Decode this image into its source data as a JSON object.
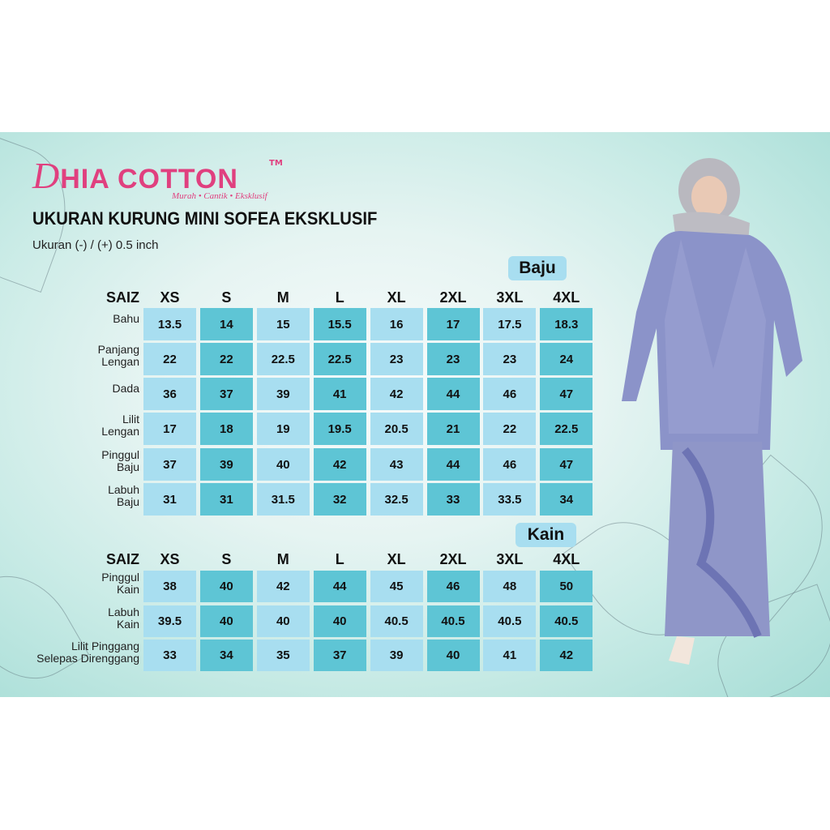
{
  "brand": {
    "name": "DHIA COTTON",
    "trademark": "TM",
    "tagline": "Murah • Cantik • Eksklusif"
  },
  "title": "UKURAN KURUNG MINI SOFEA EKSKLUSIF",
  "subtitle": "Ukuran (-) / (+) 0.5 inch",
  "colors": {
    "brand_pink": "#e0407f",
    "cell_light": "#a8def0",
    "cell_dark": "#5ec5d5"
  },
  "baju": {
    "section_label": "Baju",
    "size_header": "SAIZ",
    "sizes": [
      "XS",
      "S",
      "M",
      "L",
      "XL",
      "2XL",
      "3XL",
      "4XL"
    ],
    "rows": [
      {
        "label": [
          "Bahu"
        ],
        "values": [
          "13.5",
          "14",
          "15",
          "15.5",
          "16",
          "17",
          "17.5",
          "18.3"
        ]
      },
      {
        "label": [
          "Panjang",
          "Lengan"
        ],
        "values": [
          "22",
          "22",
          "22.5",
          "22.5",
          "23",
          "23",
          "23",
          "24"
        ]
      },
      {
        "label": [
          "Dada"
        ],
        "values": [
          "36",
          "37",
          "39",
          "41",
          "42",
          "44",
          "46",
          "47"
        ]
      },
      {
        "label": [
          "Lilit",
          "Lengan"
        ],
        "values": [
          "17",
          "18",
          "19",
          "19.5",
          "20.5",
          "21",
          "22",
          "22.5"
        ]
      },
      {
        "label": [
          "Pinggul",
          "Baju"
        ],
        "values": [
          "37",
          "39",
          "40",
          "42",
          "43",
          "44",
          "46",
          "47"
        ]
      },
      {
        "label": [
          "Labuh",
          "Baju"
        ],
        "values": [
          "31",
          "31",
          "31.5",
          "32",
          "32.5",
          "33",
          "33.5",
          "34"
        ]
      }
    ]
  },
  "kain": {
    "section_label": "Kain",
    "size_header": "SAIZ",
    "sizes": [
      "XS",
      "S",
      "M",
      "L",
      "XL",
      "2XL",
      "3XL",
      "4XL"
    ],
    "rows": [
      {
        "label": [
          "Pinggul",
          "Kain"
        ],
        "values": [
          "38",
          "40",
          "42",
          "44",
          "45",
          "46",
          "48",
          "50"
        ]
      },
      {
        "label": [
          "Labuh",
          "Kain"
        ],
        "values": [
          "39.5",
          "40",
          "40",
          "40",
          "40.5",
          "40.5",
          "40.5",
          "40.5"
        ]
      },
      {
        "label": [
          "Lilit Pinggang",
          "Selepas Direnggang"
        ],
        "values": [
          "33",
          "34",
          "35",
          "37",
          "39",
          "40",
          "41",
          "42"
        ]
      }
    ]
  }
}
